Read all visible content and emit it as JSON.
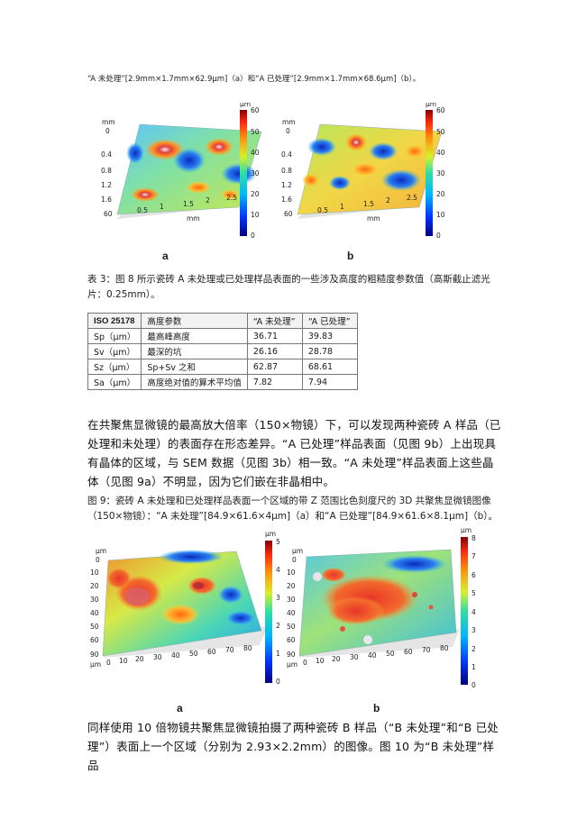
{
  "top_caption": "“A 未处理”[2.9mm×1.7mm×62.9µm]（a）和“A 已处理”[2.9mm×1.7mm×68.6µm]（b）。",
  "fig8": {
    "panels": [
      {
        "label": "a",
        "xunit": "mm",
        "yunit": "mm",
        "xticks": [
          "60",
          "0.5",
          "1",
          "1.5",
          "2",
          "2.5"
        ],
        "yticks": [
          "0",
          "0.4",
          "0.8",
          "1.2",
          "1.6"
        ],
        "scale_unit": "µm",
        "scale_ticks": [
          "60",
          "50",
          "40",
          "30",
          "20",
          "10",
          "0"
        ]
      },
      {
        "label": "b",
        "xunit": "mm",
        "yunit": "mm",
        "xticks": [
          "60",
          "0.5",
          "1",
          "1.5",
          "2",
          "2.5"
        ],
        "yticks": [
          "0",
          "0.4",
          "0.8",
          "1.2",
          "1.6"
        ],
        "scale_unit": "µm",
        "scale_ticks": [
          "60",
          "50",
          "40",
          "30",
          "20",
          "10",
          "0"
        ]
      }
    ]
  },
  "table3_caption": "表 3：图 8 所示瓷砖 A 未处理或已处理样品表面的一些涉及高度的粗糙度参数值（高斯截止滤光片：0.25mm）。",
  "table3": {
    "headers": [
      "ISO 25178",
      "高度参数",
      "“A 未处理”",
      "“A 已处理”"
    ],
    "rows": [
      [
        "Sp（µm）",
        "最高峰高度",
        "36.71",
        "39.83"
      ],
      [
        "Sv（µm）",
        "最深的坑",
        "26.16",
        "28.78"
      ],
      [
        "Sz（µm）",
        "Sp+Sv 之和",
        "62.87",
        "68.61"
      ],
      [
        "Sa（µm）",
        "高度绝对值的算术平均值",
        "7.82",
        "7.94"
      ]
    ]
  },
  "paragraph1": "在共聚焦显微镜的最高放大倍率（150×物镜）下，可以发现两种瓷砖 A 样品（已处理和未处理）的表面存在形态差异。“A 已处理”样品表面（见图 9b）上出现具有晶体的区域，与 SEM 数据（见图 3b）相一致。“A 未处理”样品表面上这些晶体（见图 9a）不明显，因为它们嵌在非晶相中。",
  "fig9_caption": "图 9：瓷砖 A 未处理和已处理样品表面一个区域的带 Z 范围比色刻度尺的 3D 共聚焦显微镜图像（150×物镜）：“A 未处理”[84.9×61.6×4µm]（a）和“A 已处理”[84.9×61.6×8.1µm]（b）。",
  "fig9": {
    "panels": [
      {
        "label": "a",
        "xunit": "µm",
        "yunit": "µm",
        "xticks": [
          "90",
          "0",
          "10",
          "20",
          "30",
          "40",
          "50",
          "60",
          "70",
          "80"
        ],
        "yticks": [
          "0",
          "10",
          "20",
          "30",
          "40",
          "50",
          "60"
        ],
        "scale_unit": "µm",
        "scale_ticks": [
          "5",
          "4",
          "3",
          "2",
          "1",
          "0"
        ]
      },
      {
        "label": "b",
        "xunit": "µm",
        "yunit": "µm",
        "xticks": [
          "90",
          "0",
          "10",
          "20",
          "30",
          "40",
          "50",
          "60",
          "70",
          "80"
        ],
        "yticks": [
          "0",
          "10",
          "20",
          "30",
          "40",
          "50",
          "60"
        ],
        "scale_unit": "µm",
        "scale_ticks": [
          "8",
          "7",
          "6",
          "5",
          "4",
          "3",
          "2",
          "1",
          "0"
        ]
      }
    ]
  },
  "paragraph2": "同样使用 10 倍物镜共聚焦显微镜拍摄了两种瓷砖 B 样品（“B 未处理”和“B 已处理”）表面上一个区域（分别为 2.93×2.2mm）的图像。图 10 为“B 未处理”样品"
}
